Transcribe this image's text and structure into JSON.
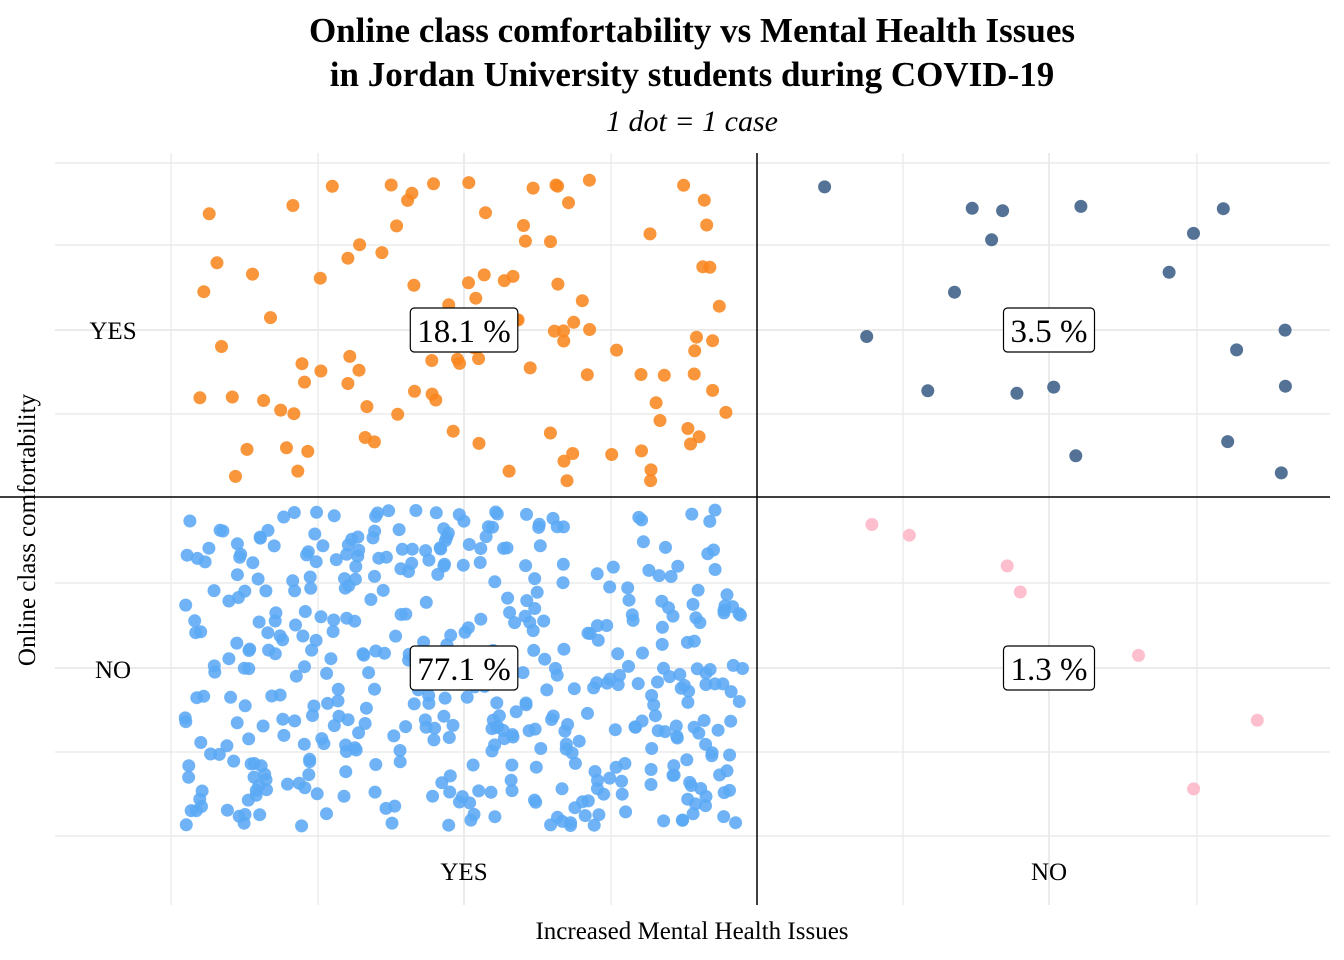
{
  "chart_data": {
    "type": "scatter",
    "title_lines": [
      "Online class comfortability vs Mental Health Issues",
      "in Jordan University students during COVID-19"
    ],
    "subtitle": "1 dot = 1 case",
    "xlabel": "Increased Mental Health Issues",
    "ylabel": "Online class comfortability",
    "x_categories": [
      "YES",
      "NO"
    ],
    "y_categories": [
      "YES",
      "NO"
    ],
    "grid": true,
    "legend": "none",
    "quadrants": [
      {
        "mental_health_issues": "YES",
        "online_comfortable": "YES",
        "percent": 18.1,
        "label": "18.1 %",
        "color": "#F8861F",
        "cases": 108
      },
      {
        "mental_health_issues": "NO",
        "online_comfortable": "YES",
        "percent": 3.5,
        "label": "3.5 %",
        "color": "#3B5E86",
        "cases": 21
      },
      {
        "mental_health_issues": "YES",
        "online_comfortable": "NO",
        "percent": 77.1,
        "label": "77.1 %",
        "color": "#5BA8F5",
        "cases": 460
      },
      {
        "mental_health_issues": "NO",
        "online_comfortable": "NO",
        "percent": 1.3,
        "label": "1.3 %",
        "color": "#FDB6C6",
        "cases": 8
      }
    ]
  }
}
